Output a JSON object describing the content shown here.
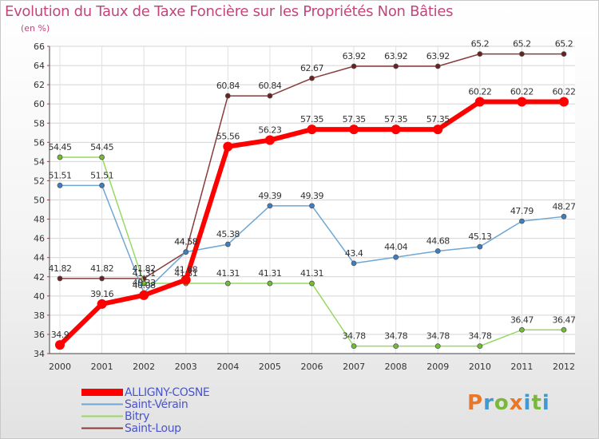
{
  "title": "Evolution du Taux de Taxe Foncière sur les Propriétés Non Bâties",
  "subtitle": "(en %)",
  "logo": {
    "text": "Proxiti"
  },
  "chart_data": {
    "type": "line",
    "title": "Evolution du Taux de Taxe Foncière sur les Propriétés Non Bâties",
    "ylabel": "(en %)",
    "xlabel": "",
    "categories": [
      "2000",
      "2001",
      "2002",
      "2003",
      "2004",
      "2005",
      "2006",
      "2007",
      "2008",
      "2009",
      "2010",
      "2011",
      "2012"
    ],
    "ylim": [
      34,
      66
    ],
    "yticks": [
      34,
      36,
      38,
      40,
      42,
      44,
      46,
      48,
      50,
      52,
      54,
      56,
      58,
      60,
      62,
      64,
      66
    ],
    "grid": true,
    "legend_position": "bottom-left",
    "series": [
      {
        "name": "ALLIGNY-COSNE",
        "color": "#ff0000",
        "marker_color": "#ff0000",
        "width": 6,
        "marker": 6,
        "values": [
          34.9,
          39.16,
          40.08,
          41.68,
          55.56,
          56.23,
          57.35,
          57.35,
          57.35,
          57.35,
          60.22,
          60.22,
          60.22
        ],
        "labels": [
          "34.9",
          "39.16",
          "40.08",
          "41.68",
          "55.56",
          "56.23",
          "57.35",
          "57.35",
          "57.35",
          "57.35",
          "60.22",
          "60.22",
          "60.22"
        ]
      },
      {
        "name": "Saint-Vérain",
        "color": "#6ea7d3",
        "marker_color": "#3b7fc4",
        "width": 1.5,
        "marker": 3,
        "values": [
          51.51,
          51.51,
          40.33,
          44.58,
          45.38,
          49.39,
          49.39,
          43.4,
          44.04,
          44.68,
          45.13,
          47.79,
          48.27
        ],
        "labels": [
          "51.51",
          "51.51",
          "40.33",
          "44.58",
          "45.38",
          "49.39",
          "49.39",
          "43.4",
          "44.04",
          "44.68",
          "45.13",
          "47.79",
          "48.27"
        ]
      },
      {
        "name": "Bitry",
        "color": "#96d964",
        "marker_color": "#6fbf2e",
        "width": 1.5,
        "marker": 3,
        "values": [
          54.45,
          54.45,
          41.31,
          41.31,
          41.31,
          41.31,
          41.31,
          34.78,
          34.78,
          34.78,
          34.78,
          36.47,
          36.47
        ],
        "labels": [
          "54.45",
          "54.45",
          "41.31",
          "41.31",
          "41.31",
          "41.31",
          "41.31",
          "34.78",
          "34.78",
          "34.78",
          "34.78",
          "36.47",
          "36.47"
        ]
      },
      {
        "name": "Saint-Loup",
        "color": "#8a3b3b",
        "marker_color": "#6b1f1f",
        "width": 1.5,
        "marker": 3,
        "values": [
          41.82,
          41.82,
          41.82,
          44.58,
          60.84,
          60.84,
          62.67,
          63.92,
          63.92,
          63.92,
          65.2,
          65.2,
          65.2
        ],
        "labels": [
          "41.82",
          "41.82",
          "41.82",
          "44.58",
          "60.84",
          "60.84",
          "62.67",
          "63.92",
          "63.92",
          "63.92",
          "65.2",
          "65.2",
          "65.2"
        ]
      }
    ]
  }
}
